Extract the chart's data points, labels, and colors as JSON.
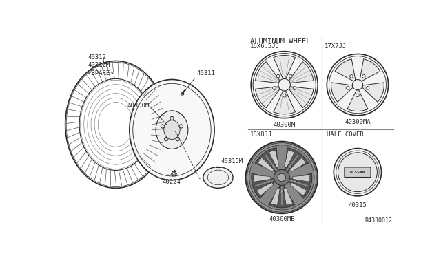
{
  "bg_color": "#ffffff",
  "line_color": "#2a2a2a",
  "title_ref": "R4330012",
  "tire_label": "40312\n40312M\n<SPARE>",
  "hub_label": "40300M",
  "valve_label": "40311",
  "nut_label": "40224",
  "cap_label": "40315M",
  "right_top_title": "ALUMINUM WHEEL",
  "right_top_left_size": "16X6.5JJ",
  "right_top_right_size": "17X7JJ",
  "right_top_left_part": "40300M",
  "right_top_right_part": "40300MA",
  "right_bot_left_size": "18X8JJ",
  "right_bot_right_title": "HALF COVER",
  "right_bot_left_part": "40300MB",
  "right_bot_right_part": "40315",
  "font_size_small": 6.5,
  "font_size_med": 7.5
}
